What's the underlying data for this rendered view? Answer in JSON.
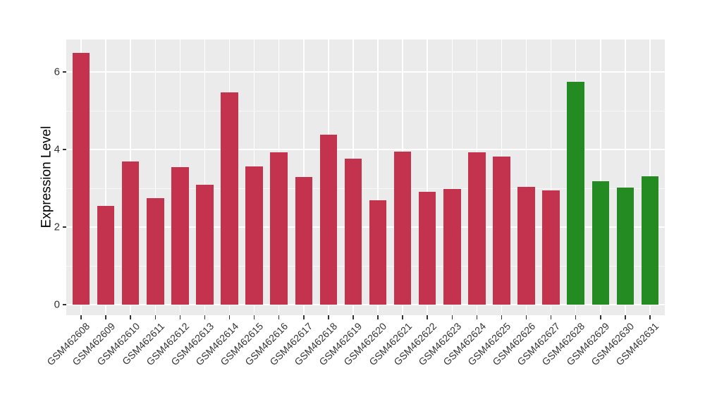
{
  "figure": {
    "background": "#FFFFFF",
    "panel_background": "#EBEBEB",
    "grid_major_color": "#FFFFFF",
    "grid_minor_color": "#FFFFFF",
    "axis_text_color": "#333333",
    "axis_title_color": "#000000",
    "tick_mark_color": "#333333"
  },
  "chart_data": {
    "type": "bar",
    "title": "",
    "xlabel": "",
    "ylabel": "Expression Level",
    "ylim": [
      0,
      6.83
    ],
    "yticks": [
      0,
      2,
      4,
      6
    ],
    "grid": true,
    "legend_position": "none",
    "x_tick_rotation_deg": 45,
    "categories": [
      "GSM462608",
      "GSM462609",
      "GSM462610",
      "GSM462611",
      "GSM462612",
      "GSM462613",
      "GSM462614",
      "GSM462615",
      "GSM462616",
      "GSM462617",
      "GSM462618",
      "GSM462619",
      "GSM462620",
      "GSM462621",
      "GSM462622",
      "GSM462623",
      "GSM462624",
      "GSM462625",
      "GSM462626",
      "GSM462627",
      "GSM462628",
      "GSM462629",
      "GSM462630",
      "GSM462631"
    ],
    "values": [
      6.49,
      2.54,
      3.69,
      2.74,
      3.54,
      3.09,
      5.47,
      3.57,
      3.93,
      3.3,
      4.38,
      3.76,
      2.69,
      3.95,
      2.91,
      2.99,
      3.93,
      3.81,
      3.04,
      2.95,
      5.74,
      3.19,
      3.01,
      3.31
    ],
    "groups": [
      "red",
      "red",
      "red",
      "red",
      "red",
      "red",
      "red",
      "red",
      "red",
      "red",
      "red",
      "red",
      "red",
      "red",
      "red",
      "red",
      "red",
      "red",
      "red",
      "red",
      "green",
      "green",
      "green",
      "green"
    ],
    "group_colors": {
      "red": "#C3334D",
      "green": "#238B21"
    }
  }
}
